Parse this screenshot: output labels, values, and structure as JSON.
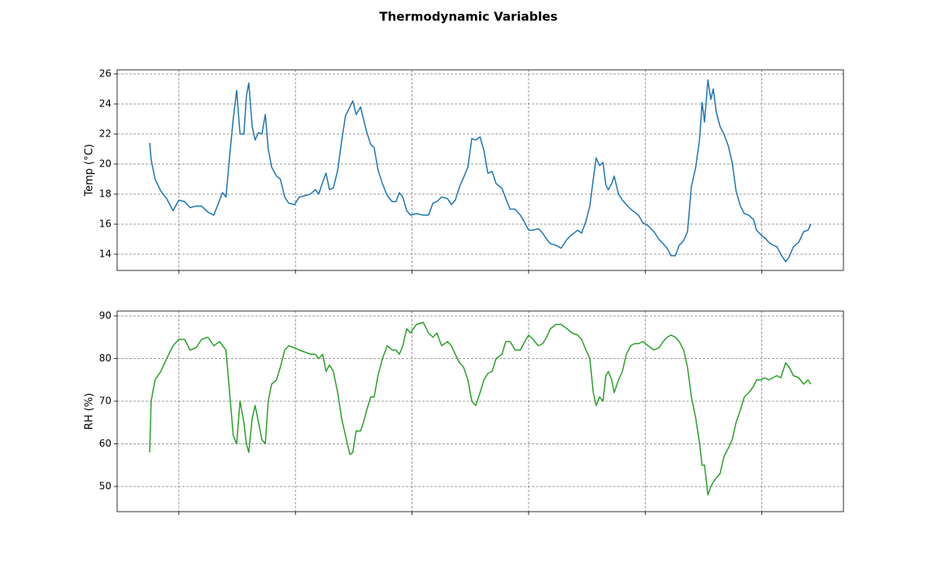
{
  "title": "Thermodynamic Variables",
  "chart_data": [
    {
      "type": "line",
      "ylabel": "Temp (°C)",
      "color": "#1f77b4",
      "grid": true,
      "xlim": [
        -12.7,
        136.8
      ],
      "xticks": [
        0,
        24,
        48,
        72,
        96,
        120
      ],
      "ylim": [
        12.92,
        26.27
      ],
      "yticks": [
        14,
        16,
        18,
        20,
        22,
        24,
        26
      ],
      "x": [
        -6.0,
        -5.7,
        -4.9,
        -3.7,
        -2.5,
        -1.2,
        0,
        1.2,
        2.3,
        3.5,
        4.7,
        6.0,
        7.2,
        8.4,
        9.0,
        9.7,
        10.6,
        11.2,
        11.9,
        12.6,
        13.4,
        13.9,
        14.4,
        15.1,
        15.7,
        16.4,
        17.1,
        17.8,
        18.4,
        19.1,
        20.1,
        20.9,
        21.8,
        22.6,
        23.8,
        24.8,
        26.0,
        27.1,
        28.1,
        28.8,
        29.6,
        30.3,
        31.0,
        31.8,
        32.7,
        33.5,
        34.3,
        35.2,
        35.8,
        36.5,
        37.4,
        38.0,
        38.7,
        39.5,
        40.2,
        41.0,
        41.9,
        42.9,
        43.9,
        44.7,
        45.4,
        46.1,
        46.9,
        47.7,
        48.9,
        50.3,
        51.4,
        52.3,
        53.1,
        54.1,
        55.3,
        56.1,
        56.9,
        57.8,
        58.6,
        59.5,
        60.3,
        61.1,
        62.0,
        62.8,
        63.6,
        64.5,
        65.3,
        66.5,
        67.3,
        68.2,
        69.2,
        70.3,
        71.2,
        72.0,
        72.9,
        74.0,
        74.9,
        75.7,
        76.5,
        77.6,
        78.7,
        79.9,
        80.9,
        82.1,
        82.9,
        83.8,
        84.6,
        85.3,
        85.9,
        86.6,
        87.3,
        87.9,
        88.4,
        89.1,
        89.6,
        90.5,
        91.3,
        92.1,
        93.0,
        93.8,
        94.6,
        95.5,
        96.6,
        97.8,
        98.8,
        99.7,
        100.5,
        101.3,
        102.2,
        103.0,
        103.9,
        104.7,
        105.5,
        106.4,
        107.2,
        107.7,
        108.2,
        108.9,
        109.5,
        110.0,
        110.6,
        111.4,
        112.2,
        113.1,
        113.9,
        114.7,
        115.6,
        116.4,
        117.3,
        118.3,
        118.9,
        119.8,
        120.6,
        121.4,
        122.3,
        123.1,
        123.9,
        124.9,
        125.6,
        126.5,
        127.6,
        128.6,
        129.5,
        130.1
      ],
      "values": [
        21.4,
        20.3,
        19.0,
        18.2,
        17.7,
        16.9,
        17.6,
        17.5,
        17.1,
        17.2,
        17.2,
        16.8,
        16.6,
        17.6,
        18.1,
        17.8,
        21.0,
        23.0,
        24.9,
        22.0,
        22.0,
        24.5,
        25.4,
        22.5,
        21.6,
        22.1,
        22.0,
        23.3,
        21.0,
        19.8,
        19.2,
        19.0,
        17.8,
        17.4,
        17.3,
        17.8,
        17.9,
        18.0,
        18.3,
        18.0,
        18.8,
        19.4,
        18.3,
        18.4,
        19.6,
        21.5,
        23.2,
        23.8,
        24.2,
        23.3,
        23.8,
        23.0,
        22.1,
        21.3,
        21.1,
        19.6,
        18.7,
        17.9,
        17.5,
        17.5,
        18.1,
        17.8,
        16.9,
        16.6,
        16.7,
        16.6,
        16.6,
        17.4,
        17.5,
        17.8,
        17.7,
        17.3,
        17.6,
        18.5,
        19.1,
        19.8,
        21.7,
        21.6,
        21.8,
        20.9,
        19.4,
        19.5,
        18.7,
        18.4,
        17.7,
        17.0,
        17.0,
        16.6,
        16.1,
        15.6,
        15.6,
        15.7,
        15.4,
        15.0,
        14.7,
        14.6,
        14.4,
        15.0,
        15.3,
        15.6,
        15.4,
        16.2,
        17.2,
        19.0,
        20.4,
        19.9,
        20.1,
        18.6,
        18.3,
        18.7,
        19.2,
        18.0,
        17.6,
        17.3,
        17.0,
        16.8,
        16.6,
        16.1,
        15.9,
        15.5,
        15.0,
        14.7,
        14.4,
        13.9,
        13.9,
        14.6,
        14.9,
        15.5,
        18.5,
        19.8,
        21.7,
        24.1,
        22.8,
        25.6,
        24.3,
        25.0,
        23.5,
        22.5,
        22.0,
        21.2,
        20.1,
        18.2,
        17.2,
        16.7,
        16.6,
        16.3,
        15.6,
        15.3,
        15.1,
        14.8,
        14.6,
        14.5,
        14.0,
        13.5,
        13.8,
        14.5,
        14.8,
        15.5,
        15.6,
        16.0
      ]
    },
    {
      "type": "line",
      "ylabel": "RH (%)",
      "color": "#2ca02c",
      "grid": true,
      "xlim": [
        -12.7,
        136.8
      ],
      "xticks": [
        0,
        24,
        48,
        72,
        96,
        120
      ],
      "ylim": [
        44.1,
        91.14
      ],
      "yticks": [
        50,
        60,
        70,
        80,
        90
      ],
      "x": [
        -6.0,
        -5.7,
        -4.9,
        -3.7,
        -2.5,
        -1.2,
        0,
        1.2,
        2.3,
        3.5,
        4.7,
        6.0,
        7.2,
        8.4,
        9.0,
        9.7,
        10.6,
        11.2,
        11.9,
        12.6,
        13.4,
        13.9,
        14.4,
        15.1,
        15.7,
        16.4,
        17.1,
        17.8,
        18.4,
        19.1,
        20.1,
        20.9,
        21.8,
        22.6,
        23.8,
        24.8,
        26.0,
        27.1,
        28.1,
        28.8,
        29.6,
        30.3,
        31.0,
        31.8,
        32.7,
        33.5,
        34.3,
        35.2,
        35.8,
        36.5,
        37.4,
        38.0,
        38.7,
        39.5,
        40.2,
        41.0,
        41.9,
        42.9,
        43.9,
        44.7,
        45.4,
        46.1,
        46.9,
        47.7,
        48.9,
        50.3,
        51.4,
        52.3,
        53.1,
        54.1,
        55.3,
        56.1,
        56.9,
        57.8,
        58.6,
        59.5,
        60.3,
        61.1,
        62.0,
        62.8,
        63.6,
        64.5,
        65.3,
        66.5,
        67.3,
        68.2,
        69.2,
        70.3,
        71.2,
        72.0,
        72.9,
        74.0,
        74.9,
        75.7,
        76.5,
        77.6,
        78.7,
        79.9,
        80.9,
        82.1,
        82.9,
        83.8,
        84.6,
        85.3,
        85.9,
        86.6,
        87.3,
        87.9,
        88.4,
        89.1,
        89.6,
        90.5,
        91.3,
        92.1,
        93.0,
        93.8,
        94.6,
        95.5,
        96.6,
        97.8,
        98.8,
        99.7,
        100.5,
        101.3,
        102.2,
        103.0,
        103.9,
        104.7,
        105.5,
        106.4,
        107.2,
        107.7,
        108.2,
        108.9,
        109.5,
        110.0,
        110.6,
        111.4,
        112.2,
        113.1,
        113.9,
        114.7,
        115.6,
        116.4,
        117.3,
        118.3,
        118.9,
        119.8,
        120.6,
        121.4,
        122.3,
        123.1,
        123.9,
        124.9,
        125.6,
        126.5,
        127.6,
        128.6,
        129.5,
        130.1
      ],
      "values": [
        58,
        70,
        75,
        77,
        80,
        83,
        84.5,
        84.5,
        82,
        82.5,
        84.5,
        85,
        83,
        84,
        83,
        82,
        70,
        62,
        60,
        70,
        65,
        60,
        58,
        66,
        69,
        65,
        61,
        60,
        70,
        74,
        75,
        78,
        82,
        83,
        82.5,
        82,
        81.5,
        81,
        81,
        80,
        81,
        77,
        78.5,
        77,
        72,
        66,
        62,
        57.5,
        58,
        63,
        63,
        65,
        68,
        71,
        71,
        76,
        80,
        83,
        82,
        82,
        81,
        83,
        87,
        86,
        88,
        88.5,
        86,
        85,
        86,
        83,
        84,
        83,
        81,
        79,
        78,
        75,
        70,
        69,
        72,
        75,
        76.5,
        77,
        80,
        81,
        84,
        84,
        82,
        82,
        84,
        85.5,
        84.5,
        83,
        83.5,
        85,
        87,
        88,
        88,
        87,
        86,
        85.5,
        84.5,
        82,
        80,
        72,
        69,
        71,
        70,
        76,
        77,
        75,
        72,
        75,
        77,
        81,
        83,
        83.5,
        83.5,
        84,
        83,
        82,
        82.5,
        84,
        85,
        85.5,
        85,
        84,
        82,
        78,
        71,
        66,
        60,
        55,
        55,
        48,
        50,
        51,
        52,
        53,
        57,
        59,
        61,
        65,
        68,
        71,
        72,
        73.5,
        75,
        75,
        75.5,
        75,
        75.5,
        76,
        75.5,
        79,
        78,
        76,
        75.5,
        74,
        75,
        74
      ]
    }
  ]
}
